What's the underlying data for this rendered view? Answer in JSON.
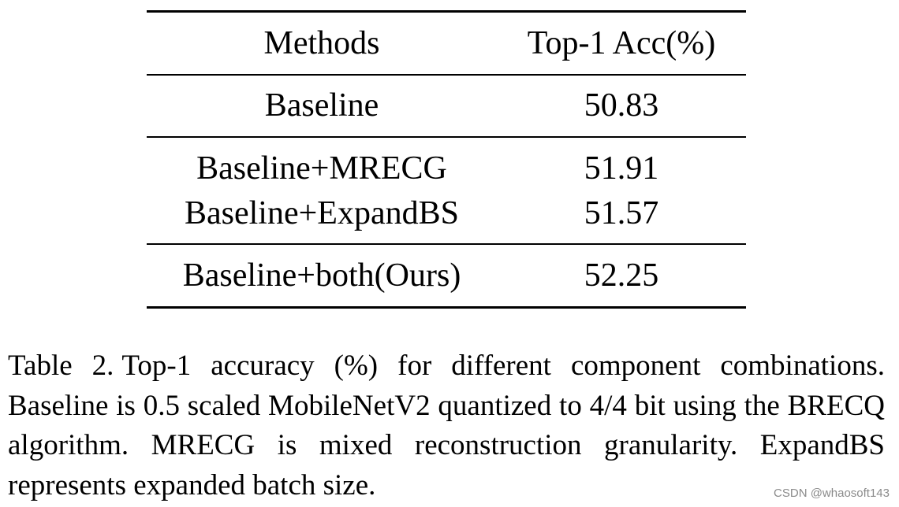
{
  "table": {
    "headers": [
      "Methods",
      "Top-1 Acc(%)"
    ],
    "rows": [
      {
        "method": "Baseline",
        "acc": "50.83"
      },
      {
        "method": "Baseline+MRECG",
        "acc": "51.91"
      },
      {
        "method": "Baseline+ExpandBS",
        "acc": "51.57"
      },
      {
        "method": "Baseline+both(Ours)",
        "acc": "52.25"
      }
    ]
  },
  "caption": {
    "label": "Table 2.",
    "text": "Top-1 accuracy (%) for different component combinations. Baseline is 0.5 scaled MobileNetV2 quantized to 4/4 bit using the BRECQ algorithm. MRECG is mixed reconstruction granularity. ExpandBS represents expanded batch size."
  },
  "watermark": "CSDN @whaosoft143"
}
